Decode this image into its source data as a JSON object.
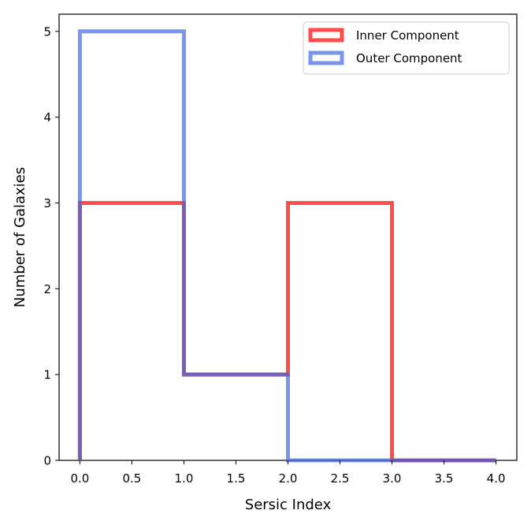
{
  "chart_data": {
    "type": "step-histogram",
    "title": "",
    "xlabel": "Sersic Index",
    "ylabel": "Number of Galaxies",
    "xlim": [
      -0.2,
      4.2
    ],
    "ylim": [
      0,
      5.2
    ],
    "bin_edges": [
      0,
      1,
      2,
      3,
      4
    ],
    "xticks": [
      0.0,
      0.5,
      1.0,
      1.5,
      2.0,
      2.5,
      3.0,
      3.5,
      4.0
    ],
    "xtick_labels": [
      "0.0",
      "0.5",
      "1.0",
      "1.5",
      "2.0",
      "2.5",
      "3.0",
      "3.5",
      "4.0"
    ],
    "yticks": [
      0,
      1,
      2,
      3,
      4,
      5
    ],
    "ytick_labels": [
      "0",
      "1",
      "2",
      "3",
      "4",
      "5"
    ],
    "series": [
      {
        "name": "Inner Component",
        "counts": [
          3,
          1,
          3,
          0
        ],
        "color": "#ff0000",
        "alpha": 0.7
      },
      {
        "name": "Outer Component",
        "counts": [
          5,
          1,
          0,
          0
        ],
        "color": "#4169e1",
        "alpha": 0.7
      }
    ],
    "legend": {
      "position": "top-right"
    },
    "grid": false
  }
}
